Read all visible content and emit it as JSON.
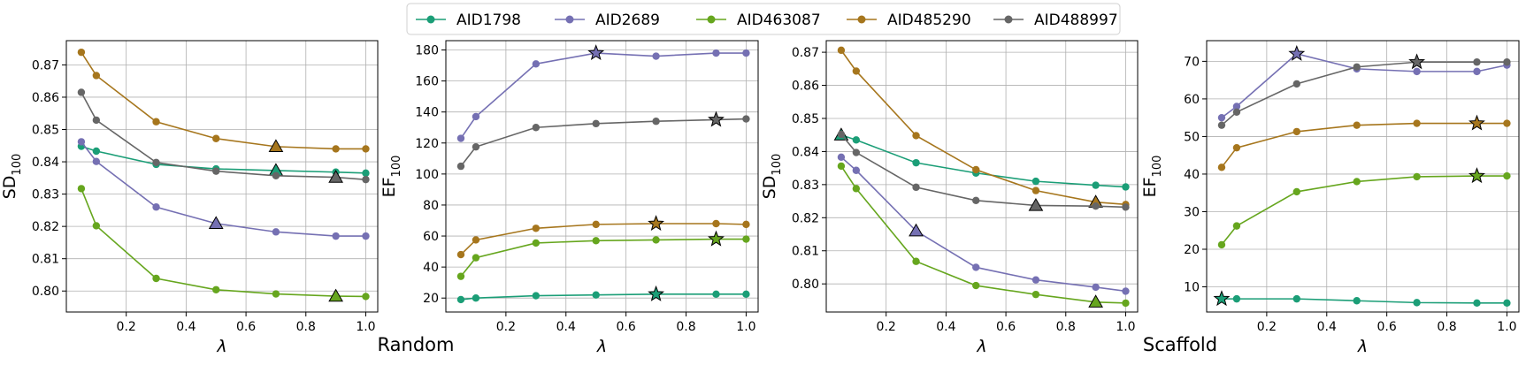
{
  "legend": [
    "AID1798",
    "AID2689",
    "AID463087",
    "AID485290",
    "AID488997"
  ],
  "colors": {
    "AID1798": "#1b9e77",
    "AID2689": "#7570b3",
    "AID463087": "#66a61e",
    "AID485290": "#a6761d",
    "AID488997": "#666666"
  },
  "groups": [
    "Random",
    "Scaffold"
  ],
  "chart_data": [
    {
      "type": "line",
      "group": "Random",
      "xlabel": "λ",
      "ylabel_main": "SD",
      "ylabel_sub": "100",
      "x": [
        0.05,
        0.1,
        0.3,
        0.5,
        0.7,
        0.9,
        1.0
      ],
      "xlim": [
        0.0,
        1.04
      ],
      "ylim": [
        0.7935,
        0.8775
      ],
      "xticks": [
        0.2,
        0.4,
        0.6,
        0.8,
        1.0
      ],
      "xtick_labels": [
        "0.2",
        "0.4",
        "0.6",
        "0.8",
        "1.0"
      ],
      "yticks": [
        0.8,
        0.81,
        0.82,
        0.83,
        0.84,
        0.85,
        0.86,
        0.87
      ],
      "ytick_labels": [
        "0.80",
        "0.81",
        "0.82",
        "0.83",
        "0.84",
        "0.85",
        "0.86",
        "0.87"
      ],
      "marker_type": "triangle",
      "series": [
        {
          "name": "AID1798",
          "values": [
            0.8448,
            0.8433,
            0.8392,
            0.8378,
            0.8373,
            0.8368,
            0.8365
          ],
          "best_x": 0.7
        },
        {
          "name": "AID2689",
          "values": [
            0.8462,
            0.8401,
            0.826,
            0.8209,
            0.8183,
            0.817,
            0.817
          ],
          "best_x": 0.5
        },
        {
          "name": "AID463087",
          "values": [
            0.8317,
            0.8202,
            0.8039,
            0.8004,
            0.7991,
            0.7984,
            0.7983
          ],
          "best_x": 0.9
        },
        {
          "name": "AID485290",
          "values": [
            0.8739,
            0.8667,
            0.8524,
            0.8472,
            0.8447,
            0.844,
            0.844
          ],
          "best_x": 0.7
        },
        {
          "name": "AID488997",
          "values": [
            0.8615,
            0.8529,
            0.8398,
            0.8371,
            0.8357,
            0.8352,
            0.8345
          ],
          "best_x": 0.9
        }
      ]
    },
    {
      "type": "line",
      "group": "Random",
      "xlabel": "λ",
      "ylabel_main": "EF",
      "ylabel_sub": "100",
      "x": [
        0.05,
        0.1,
        0.3,
        0.5,
        0.7,
        0.9,
        1.0
      ],
      "xlim": [
        0.0,
        1.04
      ],
      "ylim": [
        11,
        186
      ],
      "xticks": [
        0.2,
        0.4,
        0.6,
        0.8,
        1.0
      ],
      "xtick_labels": [
        "0.2",
        "0.4",
        "0.6",
        "0.8",
        "1.0"
      ],
      "yticks": [
        20,
        40,
        60,
        80,
        100,
        120,
        140,
        160,
        180
      ],
      "ytick_labels": [
        "20",
        "40",
        "60",
        "80",
        "100",
        "120",
        "140",
        "160",
        "180"
      ],
      "marker_type": "star",
      "series": [
        {
          "name": "AID1798",
          "values": [
            19,
            20,
            21.5,
            22,
            22.5,
            22.5,
            22.5
          ],
          "best_x": 0.7
        },
        {
          "name": "AID2689",
          "values": [
            123,
            137,
            171,
            178,
            176,
            178,
            178
          ],
          "best_x": 0.5
        },
        {
          "name": "AID463087",
          "values": [
            34,
            46,
            55.5,
            57,
            57.5,
            58,
            58
          ],
          "best_x": 0.9
        },
        {
          "name": "AID485290",
          "values": [
            48,
            57.5,
            65,
            67.5,
            68,
            68,
            67.5
          ],
          "best_x": 0.7
        },
        {
          "name": "AID488997",
          "values": [
            105,
            117.5,
            130,
            132.5,
            134,
            135,
            135.5
          ],
          "best_x": 0.9
        }
      ]
    },
    {
      "type": "line",
      "group": "Scaffold",
      "xlabel": "λ",
      "ylabel_main": "SD",
      "ylabel_sub": "100",
      "x": [
        0.05,
        0.1,
        0.3,
        0.5,
        0.7,
        0.9,
        1.0
      ],
      "xlim": [
        0.0,
        1.04
      ],
      "ylim": [
        0.7915,
        0.8735
      ],
      "xticks": [
        0.2,
        0.4,
        0.6,
        0.8,
        1.0
      ],
      "xtick_labels": [
        "0.2",
        "0.4",
        "0.6",
        "0.8",
        "1.0"
      ],
      "yticks": [
        0.8,
        0.81,
        0.82,
        0.83,
        0.84,
        0.85,
        0.86,
        0.87
      ],
      "ytick_labels": [
        "0.80",
        "0.81",
        "0.82",
        "0.83",
        "0.84",
        "0.85",
        "0.86",
        "0.87"
      ],
      "marker_type": "triangle",
      "series": [
        {
          "name": "AID1798",
          "values": [
            0.845,
            0.8435,
            0.8366,
            0.8335,
            0.831,
            0.8298,
            0.8293
          ],
          "best_x": 0.05
        },
        {
          "name": "AID2689",
          "values": [
            0.8383,
            0.8343,
            0.816,
            0.805,
            0.8012,
            0.799,
            0.7978
          ],
          "best_x": 0.3
        },
        {
          "name": "AID463087",
          "values": [
            0.8356,
            0.8288,
            0.8068,
            0.7995,
            0.7968,
            0.7945,
            0.7942
          ],
          "best_x": 0.9
        },
        {
          "name": "AID485290",
          "values": [
            0.8706,
            0.8643,
            0.8448,
            0.8345,
            0.8282,
            0.8247,
            0.824
          ],
          "best_x": 0.9
        },
        {
          "name": "AID488997",
          "values": [
            0.8452,
            0.8397,
            0.8292,
            0.8252,
            0.8237,
            0.8235,
            0.8232
          ],
          "best_x": 0.7
        }
      ]
    },
    {
      "type": "line",
      "group": "Scaffold",
      "xlabel": "λ",
      "ylabel_main": "EF",
      "ylabel_sub": "100",
      "x": [
        0.05,
        0.1,
        0.3,
        0.5,
        0.7,
        0.9,
        1.0
      ],
      "xlim": [
        0.0,
        1.04
      ],
      "ylim": [
        3.3,
        75.5
      ],
      "xticks": [
        0.2,
        0.4,
        0.6,
        0.8,
        1.0
      ],
      "xtick_labels": [
        "0.2",
        "0.4",
        "0.6",
        "0.8",
        "1.0"
      ],
      "yticks": [
        10,
        20,
        30,
        40,
        50,
        60,
        70
      ],
      "ytick_labels": [
        "10",
        "20",
        "30",
        "40",
        "50",
        "60",
        "70"
      ],
      "marker_type": "star",
      "series": [
        {
          "name": "AID1798",
          "values": [
            6.8,
            6.8,
            6.8,
            6.3,
            5.8,
            5.7,
            5.7
          ],
          "best_x": 0.05
        },
        {
          "name": "AID2689",
          "values": [
            55,
            58,
            72,
            68,
            67.3,
            67.3,
            69
          ],
          "best_x": 0.3
        },
        {
          "name": "AID463087",
          "values": [
            21.2,
            26.2,
            35.3,
            38,
            39.3,
            39.5,
            39.5
          ],
          "best_x": 0.9
        },
        {
          "name": "AID485290",
          "values": [
            41.8,
            47,
            51.3,
            53,
            53.5,
            53.5,
            53.5
          ],
          "best_x": 0.9
        },
        {
          "name": "AID488997",
          "values": [
            53,
            56.5,
            64,
            68.5,
            69.8,
            69.8,
            69.8
          ],
          "best_x": 0.7
        }
      ]
    }
  ]
}
